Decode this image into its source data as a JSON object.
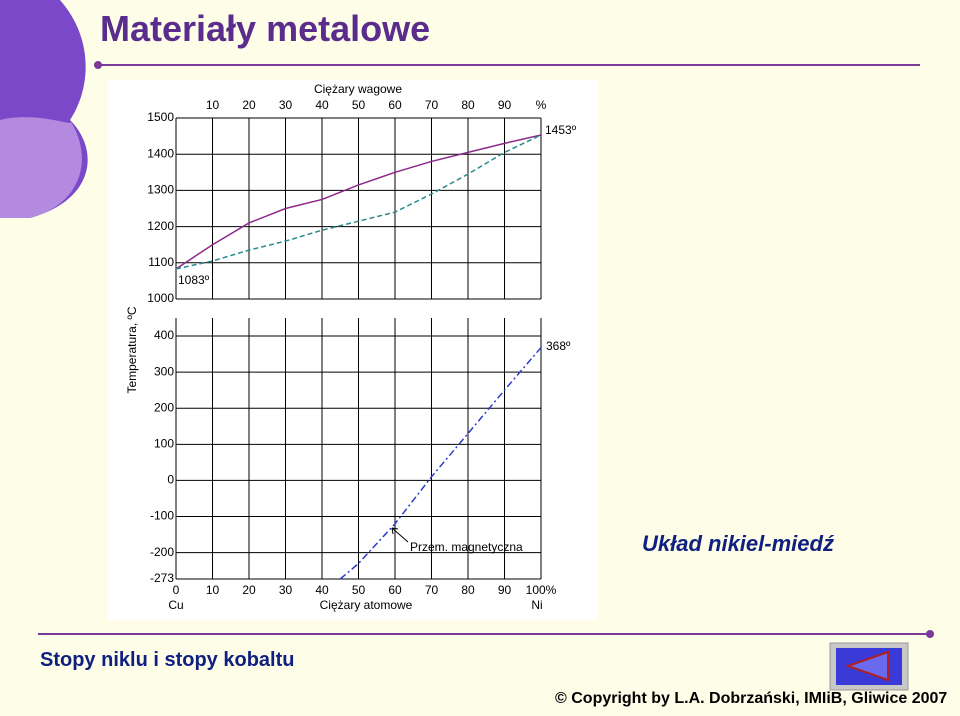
{
  "slide": {
    "title": "Materiały metalowe",
    "caption": "Układ nikiel-miedź",
    "footer": "Stopy niklu i stopy kobaltu",
    "copyright": "© Copyright by L.A. Dobrzański, IMIiB, Gliwice 2007"
  },
  "chart_data": {
    "type": "line",
    "x_label_top": "Ciężary wagowe",
    "x_label": "Ciężary atomowe",
    "y_label": "Temperatura, ºC",
    "x_start_label": "Cu",
    "x_end_label": "Ni",
    "xlim": [
      0,
      100
    ],
    "xticks": [
      0,
      10,
      20,
      30,
      40,
      50,
      60,
      70,
      80,
      90,
      {
        "value": 100,
        "label": "100%"
      }
    ],
    "x2lim": [
      0,
      100
    ],
    "x2ticks": [
      10,
      20,
      30,
      40,
      50,
      60,
      70,
      80,
      90,
      {
        "value": 100,
        "label": "%"
      }
    ],
    "ylim": [
      1000,
      1500
    ],
    "yticks": [
      1000,
      1100,
      1200,
      1300,
      1400,
      1500
    ],
    "y2lim": [
      -273,
      400
    ],
    "y2ticks": [
      -273,
      -200,
      -100,
      0,
      100,
      200,
      300,
      400
    ],
    "grid": true,
    "series": [
      {
        "color": "#8b2a8b",
        "style": "solid",
        "x": [
          0,
          10,
          20,
          30,
          40,
          50,
          60,
          70,
          80,
          90,
          100
        ],
        "values": [
          1083,
          1150,
          1210,
          1250,
          1275,
          1315,
          1350,
          1380,
          1405,
          1430,
          1453
        ]
      },
      {
        "color": "#2a8a8a",
        "style": "dashed",
        "x": [
          0,
          10,
          20,
          30,
          40,
          50,
          60,
          70,
          80,
          90,
          100
        ],
        "values": [
          1083,
          1105,
          1135,
          1160,
          1190,
          1215,
          1240,
          1290,
          1345,
          1405,
          1453
        ]
      },
      {
        "color": "#2d3cc8",
        "style": "dashdot",
        "axis": "y2",
        "x": [
          45,
          50,
          60,
          70,
          80,
          90,
          100
        ],
        "values": [
          -273,
          -230,
          -120,
          10,
          130,
          250,
          368
        ]
      }
    ],
    "annotations": [
      "1453º",
      "1083º",
      "368º",
      "Przem. magnetyczna"
    ]
  }
}
